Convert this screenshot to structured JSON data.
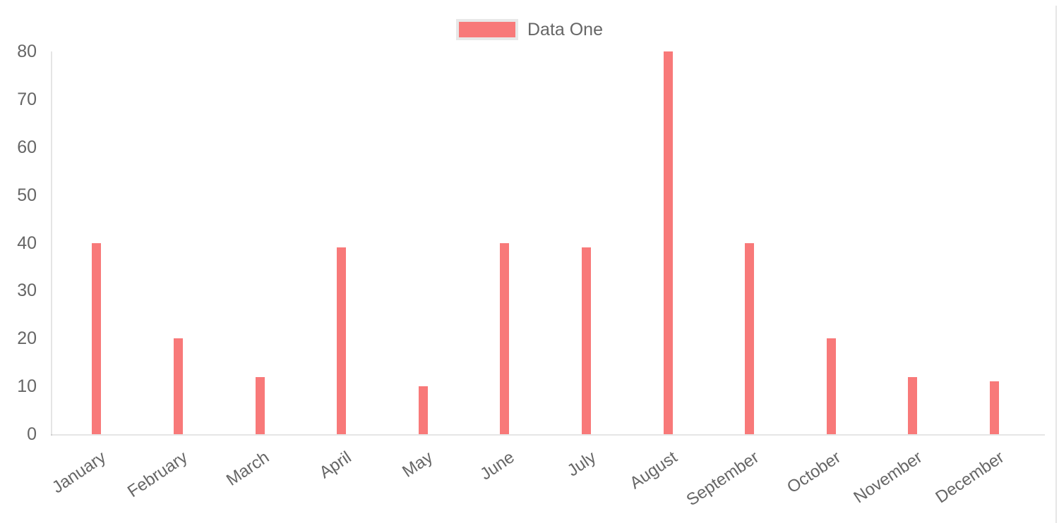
{
  "chart_data": {
    "type": "bar",
    "title": "",
    "xlabel": "",
    "ylabel": "",
    "categories": [
      "January",
      "February",
      "March",
      "April",
      "May",
      "June",
      "July",
      "August",
      "September",
      "October",
      "November",
      "December"
    ],
    "series": [
      {
        "name": "Data One",
        "color": "#f87979",
        "values": [
          40,
          20,
          12,
          39,
          10,
          40,
          39,
          80,
          40,
          20,
          12,
          11
        ]
      }
    ],
    "ylim": [
      0,
      80
    ],
    "yticks": [
      0,
      10,
      20,
      30,
      40,
      50,
      60,
      70,
      80
    ],
    "grid": false,
    "legend_position": "top",
    "legend_box_border_color": "#e8e8e8",
    "axis_text_color": "#666666",
    "axis_line_color": "rgba(0,0,0,0.1)"
  },
  "legend": {
    "label": "Data One"
  }
}
